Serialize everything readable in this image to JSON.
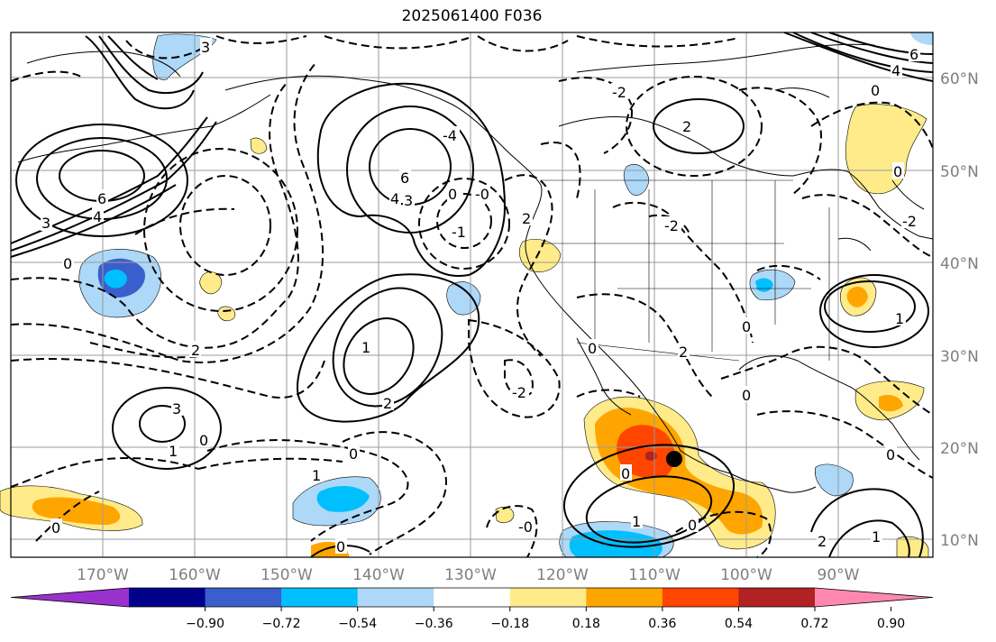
{
  "title": "2025061400 F036",
  "lat_labels": [
    "60°N",
    "50°N",
    "40°N",
    "30°N",
    "20°N",
    "10°N"
  ],
  "lon_labels": [
    "170°W",
    "160°W",
    "150°W",
    "140°W",
    "130°W",
    "120°W",
    "110°W",
    "100°W",
    "90°W"
  ],
  "colorbar": {
    "tick_labels": [
      "−0.90",
      "−0.72",
      "−0.54",
      "−0.36",
      "−0.18",
      "0.18",
      "0.36",
      "0.54",
      "0.72",
      "0.90"
    ],
    "levels": [
      -0.9,
      -0.72,
      -0.54,
      -0.36,
      -0.18,
      0.18,
      0.36,
      0.54,
      0.72,
      0.9
    ],
    "colors": [
      "#9932cc",
      "#00008b",
      "#3a5fcd",
      "#00bfff",
      "#add8f7",
      "#ffffff",
      "#ffeb8a",
      "#ffa500",
      "#ff4500",
      "#b22222",
      "#ff88b0"
    ]
  },
  "contour_labels": {
    "c1": "6",
    "c2": "3",
    "c3": "4",
    "c4": "0",
    "c5": "2",
    "c6": "6",
    "c7": "4",
    "c8": "3",
    "c9": "0",
    "c10": "-0",
    "c11": "-1",
    "c12": "2",
    "c13": "0",
    "c14": "2",
    "c15": "-2",
    "c16": "1",
    "c17": "-2",
    "c18": "0",
    "c19": "0",
    "c20": "1",
    "c21": "3",
    "c22": "1",
    "c23": "0",
    "c24": "1",
    "c25": "2",
    "c26": "-2",
    "c27": "0",
    "c28": "0",
    "c29": "1",
    "c30": "0",
    "c31": "-0",
    "c32": "0",
    "c33": "2",
    "c34": "1",
    "c35": "0",
    "c36": "-4",
    "c37": "3",
    "c38": "6",
    "c39": "4",
    "c40": "0",
    "c41": "0",
    "c42": "-2",
    "c43": "2",
    "c44": "0"
  },
  "marker": "storm-center"
}
